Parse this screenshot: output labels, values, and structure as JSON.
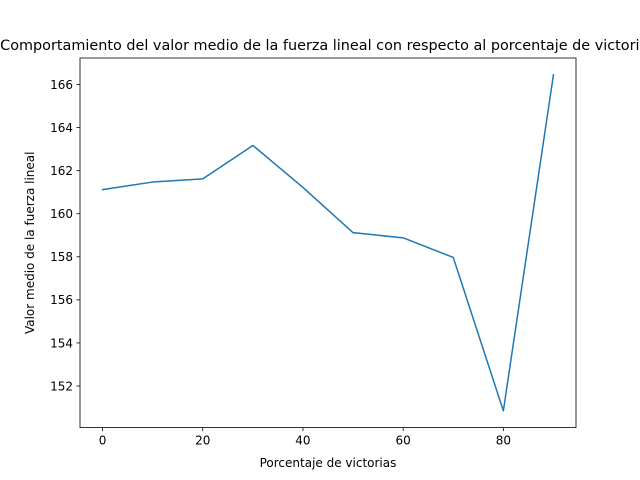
{
  "chart_data": {
    "type": "line",
    "title": "Comportamiento del valor medio de la fuerza lineal con respecto al porcentaje de victorias",
    "xlabel": "Porcentaje de victorias",
    "ylabel": "Valor medio de la fuerza lineal",
    "x": [
      0,
      10,
      20,
      30,
      40,
      50,
      60,
      70,
      80,
      90
    ],
    "series": [
      {
        "values": [
          161.12,
          161.47,
          161.62,
          163.17,
          161.22,
          159.12,
          158.88,
          157.97,
          150.85,
          166.45
        ],
        "color": "#1f77b4"
      }
    ],
    "xlim": [
      -4.5,
      94.5
    ],
    "ylim": [
      150.07,
      167.23
    ],
    "xticks": [
      0,
      20,
      40,
      60,
      80
    ],
    "yticks": [
      152,
      154,
      156,
      158,
      160,
      162,
      164,
      166
    ],
    "grid": false,
    "legend": "none"
  }
}
